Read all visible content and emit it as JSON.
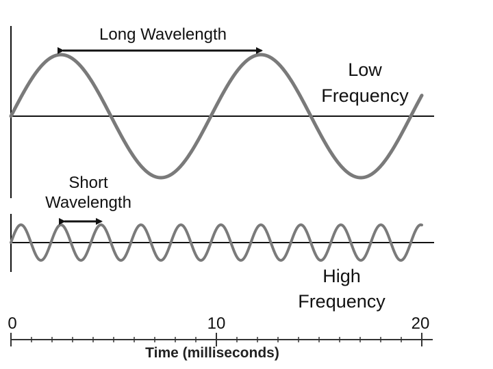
{
  "diagram": {
    "long_wavelength_label": "Long Wavelength",
    "low_frequency_label": [
      "Low",
      "Frequency"
    ],
    "short_wavelength_label": [
      "Short",
      "Wavelength"
    ],
    "high_frequency_label": [
      "High",
      "Frequency"
    ],
    "time_axis": {
      "title": "Time (milliseconds)",
      "tick_labels": [
        "0",
        "10",
        "20"
      ],
      "range": [
        0,
        20
      ]
    },
    "low_frequency_wave": {
      "cycles": 2,
      "description_period_ms": 10
    },
    "high_frequency_wave": {
      "cycles": 10,
      "description_period_ms": 2
    },
    "colors": {
      "wave": "#7a7a7a",
      "axis": "#111111",
      "background": "#ffffff"
    }
  }
}
